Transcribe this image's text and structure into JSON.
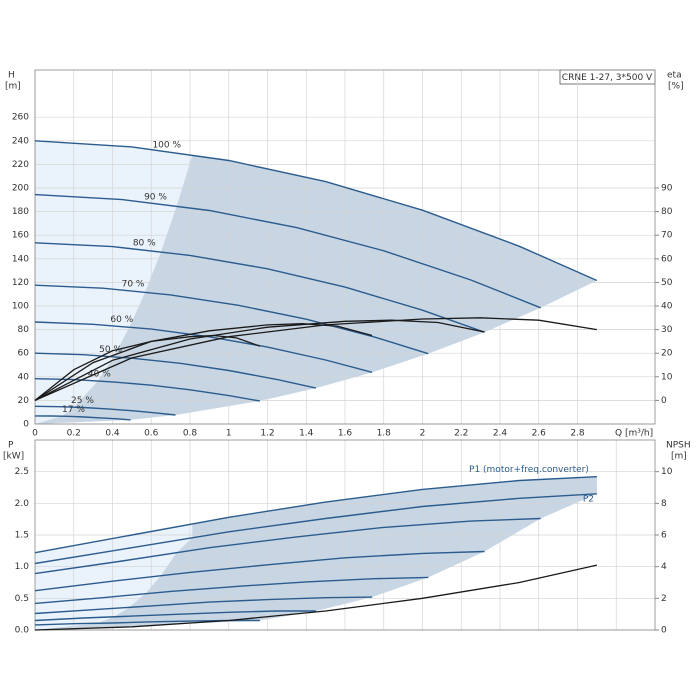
{
  "chart_data": [
    {
      "type": "line",
      "note_box": "CRNE 1-27, 3*500 V",
      "y_label": "H",
      "y_unit": "[m]",
      "y2_label": "eta",
      "y2_unit": "[%]",
      "x_label": "Q [m³/h]",
      "xlim": [
        0,
        3.2
      ],
      "xticks": [
        0,
        0.2,
        0.4,
        0.6,
        0.8,
        1.0,
        1.2,
        1.4,
        1.6,
        1.8,
        2.0,
        2.2,
        2.4,
        2.6,
        2.8
      ],
      "ylim": [
        0,
        300
      ],
      "yticks": [
        0,
        20,
        40,
        60,
        80,
        100,
        120,
        140,
        160,
        180,
        200,
        220,
        240,
        260
      ],
      "y2lim": [
        -10,
        140
      ],
      "y2ticks": [
        0,
        10,
        20,
        30,
        40,
        50,
        60,
        70,
        80,
        90
      ],
      "series": [
        {
          "name": "100 %",
          "color": "#2b5c8e",
          "x": [
            0,
            0.5,
            1,
            1.5,
            2,
            2.5,
            2.9
          ],
          "values": [
            240,
            234.8,
            223.3,
            205.4,
            181.2,
            150.6,
            121.6
          ]
        },
        {
          "name": "90 %",
          "color": "#2b5c8e",
          "x": [
            0,
            0.45,
            0.9,
            1.35,
            1.8,
            2.25,
            2.61
          ],
          "values": [
            194.4,
            190.2,
            180.9,
            166.4,
            146.8,
            122.0,
            98.5
          ]
        },
        {
          "name": "80 %",
          "color": "#2b5c8e",
          "x": [
            0,
            0.4,
            0.8,
            1.2,
            1.6,
            2.0,
            2.32
          ],
          "values": [
            153.6,
            150.3,
            142.9,
            131.5,
            116.0,
            96.4,
            77.8
          ]
        },
        {
          "name": "70 %",
          "color": "#2b5c8e",
          "x": [
            0,
            0.35,
            0.7,
            1.05,
            1.4,
            1.75,
            2.03
          ],
          "values": [
            117.6,
            115.1,
            109.4,
            100.6,
            88.8,
            73.8,
            59.6
          ]
        },
        {
          "name": "60 %",
          "color": "#2b5c8e",
          "x": [
            0,
            0.3,
            0.6,
            0.9,
            1.2,
            1.5,
            1.74
          ],
          "values": [
            86.4,
            84.5,
            80.4,
            73.9,
            65.2,
            54.2,
            43.8
          ]
        },
        {
          "name": "50 %",
          "color": "#2b5c8e",
          "x": [
            0,
            0.25,
            0.5,
            0.75,
            1.0,
            1.25,
            1.45
          ],
          "values": [
            60,
            58.7,
            55.8,
            51.4,
            45.3,
            37.7,
            30.4
          ]
        },
        {
          "name": "40 %",
          "color": "#2b5c8e",
          "x": [
            0,
            0.2,
            0.4,
            0.6,
            0.8,
            1.0,
            1.16
          ],
          "values": [
            38.4,
            37.6,
            35.7,
            32.9,
            29.0,
            24.1,
            19.5
          ]
        },
        {
          "name": "25 %",
          "color": "#2b5c8e",
          "x": [
            0,
            0.125,
            0.25,
            0.375,
            0.5,
            0.625,
            0.725
          ],
          "values": [
            15,
            14.7,
            14.0,
            12.8,
            11.3,
            9.4,
            7.6
          ]
        },
        {
          "name": "17 %",
          "color": "#2b5c8e",
          "x": [
            0,
            0.085,
            0.17,
            0.255,
            0.34,
            0.425,
            0.493
          ],
          "values": [
            6.9,
            6.8,
            6.5,
            5.9,
            5.2,
            4.4,
            3.5
          ]
        },
        {
          "axis": "y2",
          "color": "#1a1a1a",
          "x": [
            0,
            0.5,
            1,
            1.5,
            2,
            2.3,
            2.6,
            2.9
          ],
          "values": [
            0,
            18,
            27,
            32,
            34.5,
            35,
            34,
            30
          ]
        },
        {
          "axis": "y2",
          "color": "#1a1a1a",
          "x": [
            0,
            0.4,
            0.8,
            1.2,
            1.6,
            1.84,
            2.08,
            2.32
          ],
          "values": [
            0,
            17,
            26,
            31,
            33.5,
            34,
            33,
            29
          ]
        },
        {
          "axis": "y2",
          "color": "#1a1a1a",
          "x": [
            0,
            0.3,
            0.6,
            0.9,
            1.2,
            1.38,
            1.56,
            1.74
          ],
          "values": [
            0,
            16,
            25,
            29.5,
            32,
            32.5,
            31.5,
            27.5
          ]
        },
        {
          "axis": "y2",
          "color": "#1a1a1a",
          "x": [
            0,
            0.2,
            0.4,
            0.6,
            0.8,
            0.92,
            1.04,
            1.16
          ],
          "values": [
            0,
            13,
            21,
            25,
            27,
            27.5,
            26.5,
            23
          ]
        }
      ]
    },
    {
      "type": "line",
      "y_label": "P",
      "y_unit": "[kW]",
      "y2_label": "NPSH",
      "y2_unit": "[m]",
      "xlim": [
        0,
        3.2
      ],
      "ylim": [
        0,
        3
      ],
      "yticks": [
        {
          "value": 0,
          "label": "0.0"
        },
        0.5,
        {
          "value": 1,
          "label": "1.0"
        },
        1.5,
        {
          "value": 2,
          "label": "2.0"
        },
        2.5
      ],
      "y2lim": [
        0,
        12
      ],
      "y2ticks": [
        0,
        2,
        4,
        6,
        8,
        10
      ],
      "series": [
        {
          "name": "P1 (motor+freq.converter)",
          "color": "#2b5c8e",
          "x": [
            0,
            0.5,
            1,
            1.5,
            2,
            2.5,
            2.9
          ],
          "values": [
            1.22,
            1.5,
            1.78,
            2.02,
            2.22,
            2.36,
            2.42
          ]
        },
        {
          "name": "P2",
          "color": "#2b5c8e",
          "x": [
            0,
            0.5,
            1,
            1.5,
            2,
            2.5,
            2.9
          ],
          "values": [
            1.05,
            1.3,
            1.55,
            1.76,
            1.95,
            2.08,
            2.15
          ]
        },
        {
          "color": "#2b5c8e",
          "x": [
            0,
            0.45,
            0.9,
            1.35,
            1.8,
            2.25,
            2.61
          ],
          "values": [
            0.89,
            1.09,
            1.3,
            1.47,
            1.62,
            1.72,
            1.76
          ]
        },
        {
          "color": "#2b5c8e",
          "x": [
            0,
            0.4,
            0.8,
            1.2,
            1.6,
            2.0,
            2.32
          ],
          "values": [
            0.62,
            0.77,
            0.91,
            1.03,
            1.14,
            1.21,
            1.24
          ]
        },
        {
          "color": "#2b5c8e",
          "x": [
            0,
            0.35,
            0.7,
            1.05,
            1.4,
            1.75,
            2.03
          ],
          "values": [
            0.42,
            0.51,
            0.61,
            0.69,
            0.76,
            0.81,
            0.83
          ]
        },
        {
          "color": "#2b5c8e",
          "x": [
            0,
            0.3,
            0.6,
            0.9,
            1.2,
            1.5,
            1.74
          ],
          "values": [
            0.26,
            0.32,
            0.38,
            0.44,
            0.48,
            0.51,
            0.52
          ]
        },
        {
          "color": "#2b5c8e",
          "x": [
            0,
            0.25,
            0.5,
            0.75,
            1.0,
            1.25,
            1.45
          ],
          "values": [
            0.15,
            0.19,
            0.22,
            0.25,
            0.28,
            0.3,
            0.3
          ]
        },
        {
          "color": "#2b5c8e",
          "x": [
            0,
            0.2,
            0.4,
            0.6,
            0.8,
            1.0,
            1.16
          ],
          "values": [
            0.08,
            0.1,
            0.11,
            0.13,
            0.14,
            0.15,
            0.15
          ]
        },
        {
          "axis": "y2",
          "color": "#1a1a1a",
          "x": [
            0,
            0.5,
            1,
            1.5,
            2,
            2.5,
            2.9
          ],
          "values": [
            0,
            0.2,
            0.6,
            1.2,
            2.0,
            3.0,
            4.1
          ]
        }
      ]
    }
  ]
}
